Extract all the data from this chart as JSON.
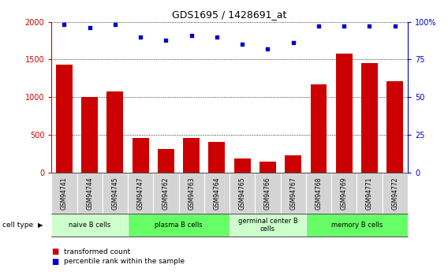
{
  "title": "GDS1695 / 1428691_at",
  "samples": [
    "GSM94741",
    "GSM94744",
    "GSM94745",
    "GSM94747",
    "GSM94762",
    "GSM94763",
    "GSM94764",
    "GSM94765",
    "GSM94766",
    "GSM94767",
    "GSM94768",
    "GSM94769",
    "GSM94771",
    "GSM94772"
  ],
  "bar_values": [
    1430,
    1000,
    1080,
    460,
    310,
    460,
    410,
    190,
    150,
    230,
    1170,
    1580,
    1450,
    1210
  ],
  "dot_values": [
    98,
    96,
    98,
    90,
    88,
    91,
    90,
    85,
    82,
    86,
    97,
    97,
    97,
    97
  ],
  "bar_color": "#cc0000",
  "dot_color": "#0000cc",
  "ylim_left": [
    0,
    2000
  ],
  "ylim_right": [
    0,
    100
  ],
  "yticks_left": [
    0,
    500,
    1000,
    1500,
    2000
  ],
  "ytick_labels_right": [
    "0",
    "25",
    "50",
    "75",
    "100%"
  ],
  "cell_groups": [
    {
      "label": "naive B cells",
      "start": 0,
      "end": 3,
      "color": "#ccffcc"
    },
    {
      "label": "plasma B cells",
      "start": 3,
      "end": 7,
      "color": "#66ff66"
    },
    {
      "label": "germinal center B\ncells",
      "start": 7,
      "end": 10,
      "color": "#ccffcc"
    },
    {
      "label": "memory B cells",
      "start": 10,
      "end": 14,
      "color": "#66ff66"
    }
  ],
  "legend_bar_label": "transformed count",
  "legend_dot_label": "percentile rank within the sample",
  "cell_type_label": "cell type",
  "tick_label_color_left": "#cc0000",
  "tick_label_color_right": "#0000cc",
  "tick_bg_color": "#d4d4d4"
}
